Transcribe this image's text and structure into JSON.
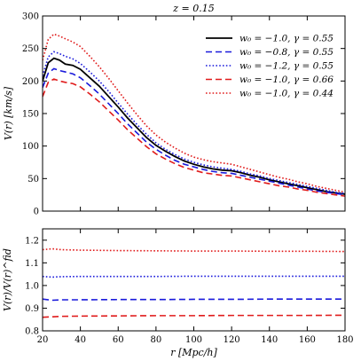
{
  "chart_data": [
    {
      "type": "line",
      "title": "z = 0.15",
      "xlabel": "",
      "ylabel": "V(r)  [km/s]",
      "xlim": [
        20,
        180
      ],
      "ylim": [
        0,
        300
      ],
      "x_ticks": [
        20,
        40,
        60,
        80,
        100,
        120,
        140,
        160,
        180
      ],
      "y_ticks": [
        0,
        50,
        100,
        150,
        200,
        250,
        300
      ],
      "legend_position": "top-right",
      "x": [
        20,
        23,
        26,
        29,
        32,
        36,
        40,
        45,
        50,
        55,
        60,
        65,
        70,
        75,
        80,
        85,
        90,
        95,
        100,
        105,
        110,
        115,
        120,
        125,
        130,
        135,
        140,
        145,
        150,
        155,
        160,
        165,
        170,
        175,
        180
      ],
      "series": [
        {
          "name": "w₀ = −1.0, γ = 0.55",
          "color": "#000000",
          "dash": "solid",
          "values": [
            200,
            228,
            235,
            232,
            226,
            224,
            218,
            205,
            192,
            176,
            160,
            143,
            128,
            113,
            101,
            92,
            84,
            77,
            72,
            68,
            65,
            63,
            62,
            59,
            55,
            52,
            48,
            45,
            42,
            39,
            36,
            33,
            30,
            28,
            26
          ]
        },
        {
          "name": "w₀ = −0.8, γ = 0.55",
          "color": "#1a1adb",
          "dash": "dashed",
          "values": [
            190,
            212,
            219,
            216,
            214,
            211,
            205,
            193,
            180,
            165,
            150,
            134,
            120,
            106,
            95,
            86,
            78,
            72,
            68,
            64,
            61,
            59,
            58,
            55,
            52,
            49,
            46,
            43,
            40,
            37,
            34,
            31,
            29,
            27,
            25
          ]
        },
        {
          "name": "w₀ = −1.2, γ = 0.55",
          "color": "#1a1adb",
          "dash": "dotted",
          "values": [
            208,
            237,
            245,
            242,
            238,
            234,
            227,
            214,
            200,
            184,
            166,
            149,
            133,
            118,
            105,
            95,
            87,
            80,
            75,
            71,
            68,
            66,
            64,
            61,
            57,
            54,
            50,
            47,
            44,
            41,
            38,
            35,
            32,
            29,
            27
          ]
        },
        {
          "name": "w₀ = −1.0, γ = 0.66",
          "color": "#e01b1b",
          "dash": "dashed",
          "values": [
            176,
            198,
            203,
            200,
            198,
            196,
            191,
            180,
            168,
            154,
            140,
            125,
            112,
            99,
            88,
            80,
            73,
            67,
            63,
            59,
            57,
            55,
            54,
            51,
            48,
            45,
            42,
            39,
            37,
            34,
            32,
            29,
            27,
            25,
            23
          ]
        },
        {
          "name": "w₀ = −1.0, γ = 0.44",
          "color": "#e01b1b",
          "dash": "dotted",
          "values": [
            232,
            264,
            272,
            269,
            265,
            260,
            253,
            238,
            222,
            204,
            185,
            166,
            148,
            131,
            117,
            106,
            97,
            89,
            83,
            79,
            76,
            74,
            72,
            68,
            64,
            60,
            56,
            52,
            49,
            45,
            42,
            38,
            35,
            32,
            29
          ]
        }
      ]
    },
    {
      "type": "line",
      "title": "",
      "xlabel": "r  [Mpc/h]",
      "ylabel": "V(r)/V(r)^fid",
      "xlim": [
        20,
        180
      ],
      "ylim": [
        0.8,
        1.25
      ],
      "x_ticks": [
        20,
        40,
        60,
        80,
        100,
        120,
        140,
        160,
        180
      ],
      "y_ticks": [
        0.8,
        0.9,
        1.0,
        1.1,
        1.2
      ],
      "x": [
        20,
        25,
        30,
        40,
        60,
        80,
        100,
        120,
        140,
        160,
        180
      ],
      "series": [
        {
          "name": "w₀ = −0.8, γ = 0.55",
          "color": "#1a1adb",
          "dash": "dashed",
          "values": [
            0.94,
            0.935,
            0.937,
            0.937,
            0.938,
            0.938,
            0.939,
            0.939,
            0.94,
            0.94,
            0.94
          ]
        },
        {
          "name": "w₀ = −1.2, γ = 0.55",
          "color": "#1a1adb",
          "dash": "dotted",
          "values": [
            1.04,
            1.037,
            1.039,
            1.04,
            1.04,
            1.04,
            1.041,
            1.041,
            1.041,
            1.041,
            1.041
          ]
        },
        {
          "name": "w₀ = −1.0, γ = 0.66",
          "color": "#e01b1b",
          "dash": "dashed",
          "values": [
            0.86,
            0.862,
            0.864,
            0.865,
            0.866,
            0.867,
            0.867,
            0.868,
            0.868,
            0.868,
            0.869
          ]
        },
        {
          "name": "w₀ = −1.0, γ = 0.44",
          "color": "#e01b1b",
          "dash": "dotted",
          "values": [
            1.158,
            1.162,
            1.158,
            1.156,
            1.154,
            1.153,
            1.152,
            1.152,
            1.151,
            1.151,
            1.15
          ]
        }
      ]
    }
  ]
}
